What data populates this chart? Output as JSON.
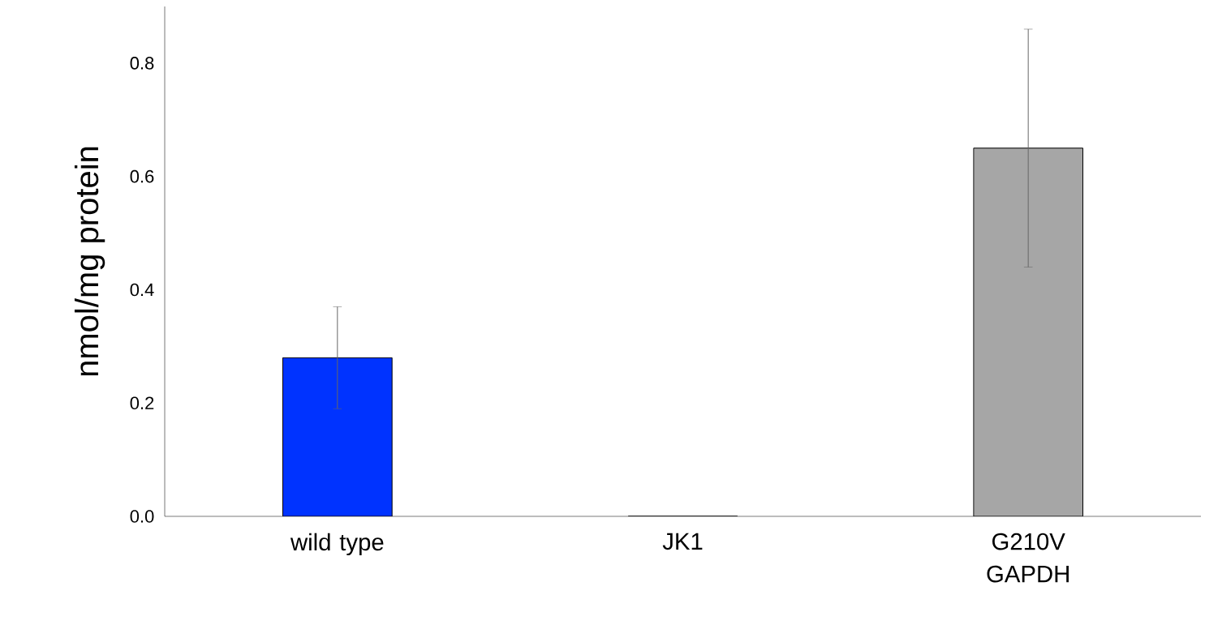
{
  "chart_data": {
    "type": "bar",
    "ylabel": "nmol/mg protein",
    "categories": [
      "wild type",
      "JK1",
      "G210V GAPDH"
    ],
    "values": [
      0.28,
      0,
      0.65
    ],
    "errors": [
      0.09,
      null,
      0.21
    ],
    "colors": [
      "#0033ff",
      "#a6a6a6",
      "#a6a6a6"
    ],
    "ylim": [
      0,
      0.9
    ],
    "yticks": [
      {
        "value": 0,
        "label": "0.0"
      },
      {
        "value": 0.2,
        "label": "0.2"
      },
      {
        "value": 0.4,
        "label": "0.4"
      },
      {
        "value": 0.6,
        "label": "0.6"
      },
      {
        "value": 0.8,
        "label": "0.8"
      }
    ],
    "grid": false
  }
}
